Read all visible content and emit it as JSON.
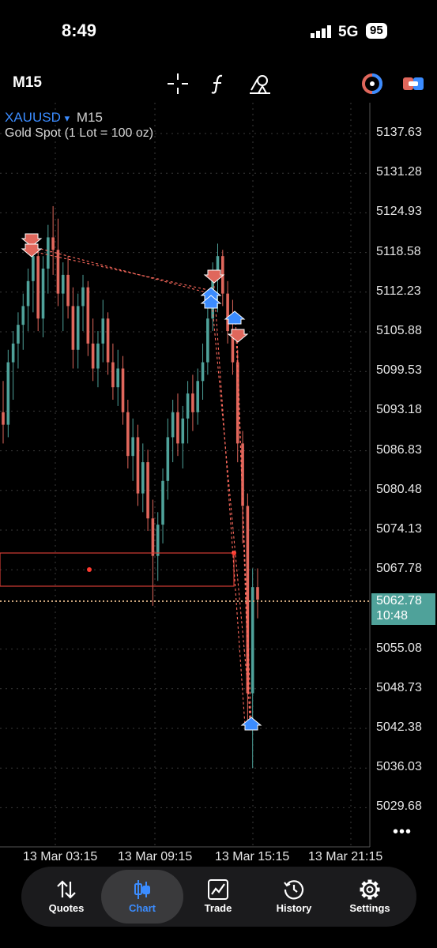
{
  "status_bar": {
    "time": "8:49",
    "network": "5G",
    "battery": "95"
  },
  "toolbar": {
    "timeframe": "M15"
  },
  "chart_header": {
    "symbol": "XAUUSD",
    "dropdown_glyph": "▾",
    "timeframe": "M15",
    "description": "Gold Spot (1 Lot = 100 oz)"
  },
  "chart_data": {
    "type": "candlestick",
    "price_axis": [
      "5137.63",
      "5131.28",
      "5124.93",
      "5118.58",
      "5112.23",
      "5105.88",
      "5099.53",
      "5093.18",
      "5086.83",
      "5080.48",
      "5074.13",
      "5067.78",
      "5055.08",
      "5048.73",
      "5042.38",
      "5036.03",
      "5029.68"
    ],
    "time_axis": [
      "13 Mar 03:15",
      "13 Mar 09:15",
      "13 Mar 15:15",
      "13 Mar 21:15"
    ],
    "current_price": "5062.78",
    "bar_countdown": "10:48",
    "colors": {
      "bull": "#4fa29a",
      "bear": "#e0675c",
      "background": "#000000"
    },
    "candles": [
      [
        5093,
        5098,
        5088,
        5091
      ],
      [
        5091,
        5103,
        5089,
        5101
      ],
      [
        5101,
        5106,
        5095,
        5104
      ],
      [
        5104,
        5109,
        5100,
        5107
      ],
      [
        5107,
        5112,
        5103,
        5110
      ],
      [
        5110,
        5116,
        5106,
        5114
      ],
      [
        5114,
        5120,
        5109,
        5118
      ],
      [
        5118,
        5119,
        5106,
        5108
      ],
      [
        5108,
        5118,
        5105,
        5116
      ],
      [
        5116,
        5123,
        5112,
        5121
      ],
      [
        5121,
        5126,
        5115,
        5119
      ],
      [
        5119,
        5124,
        5110,
        5112
      ],
      [
        5112,
        5117,
        5106,
        5115
      ],
      [
        5115,
        5118,
        5108,
        5110
      ],
      [
        5110,
        5113,
        5100,
        5103
      ],
      [
        5103,
        5112,
        5100,
        5110
      ],
      [
        5110,
        5115,
        5106,
        5113
      ],
      [
        5113,
        5114,
        5102,
        5104
      ],
      [
        5104,
        5108,
        5098,
        5100
      ],
      [
        5100,
        5106,
        5097,
        5104
      ],
      [
        5104,
        5111,
        5101,
        5108
      ],
      [
        5108,
        5109,
        5099,
        5101
      ],
      [
        5101,
        5104,
        5095,
        5097
      ],
      [
        5097,
        5103,
        5094,
        5100
      ],
      [
        5100,
        5102,
        5091,
        5093
      ],
      [
        5093,
        5095,
        5084,
        5086
      ],
      [
        5086,
        5092,
        5082,
        5089
      ],
      [
        5089,
        5091,
        5078,
        5080
      ],
      [
        5080,
        5088,
        5077,
        5085
      ],
      [
        5085,
        5087,
        5074,
        5076
      ],
      [
        5076,
        5079,
        5062,
        5070
      ],
      [
        5070,
        5077,
        5066,
        5075
      ],
      [
        5075,
        5084,
        5072,
        5082
      ],
      [
        5082,
        5092,
        5079,
        5089
      ],
      [
        5089,
        5095,
        5085,
        5093
      ],
      [
        5093,
        5096,
        5086,
        5088
      ],
      [
        5088,
        5094,
        5084,
        5092
      ],
      [
        5092,
        5098,
        5088,
        5096
      ],
      [
        5096,
        5099,
        5090,
        5093
      ],
      [
        5093,
        5100,
        5091,
        5098
      ],
      [
        5098,
        5104,
        5095,
        5101
      ],
      [
        5101,
        5110,
        5099,
        5108
      ],
      [
        5108,
        5117,
        5106,
        5115
      ],
      [
        5115,
        5120,
        5109,
        5118
      ],
      [
        5118,
        5119,
        5110,
        5112
      ],
      [
        5112,
        5114,
        5104,
        5106
      ],
      [
        5106,
        5111,
        5099,
        5101
      ],
      [
        5101,
        5103,
        5085,
        5088
      ],
      [
        5088,
        5090,
        5072,
        5078
      ],
      [
        5078,
        5080,
        5043,
        5048
      ],
      [
        5048,
        5068,
        5036,
        5065
      ],
      [
        5065,
        5068,
        5060,
        5063
      ]
    ]
  },
  "nav": {
    "quotes": "Quotes",
    "chart": "Chart",
    "trade": "Trade",
    "history": "History",
    "settings": "Settings"
  }
}
